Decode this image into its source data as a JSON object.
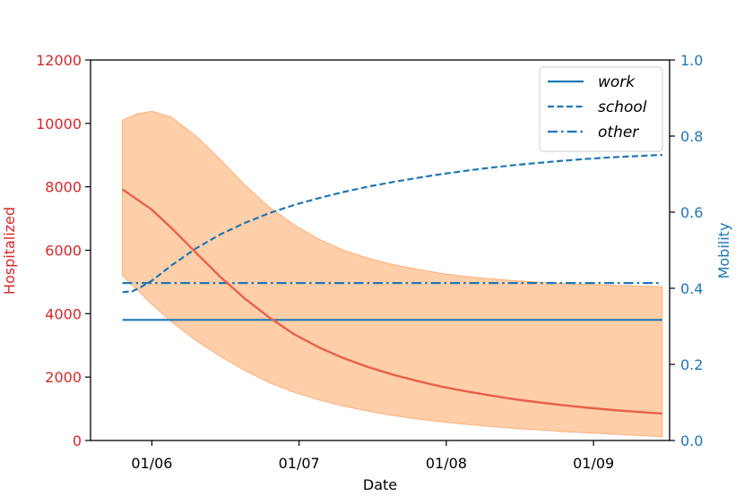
{
  "chart_data": {
    "type": "line",
    "xlabel": "Date",
    "ylabel_left": "Hospitalized",
    "ylabel_right": "Mobility",
    "x_ticks": [
      "01/06",
      "01/07",
      "01/08",
      "01/09"
    ],
    "x_tick_day": [
      6,
      36,
      66,
      96
    ],
    "x_range_days": [
      -6.5,
      111.5
    ],
    "y_left": {
      "min": 0,
      "max": 12000,
      "ticks": [
        0,
        2000,
        4000,
        6000,
        8000,
        10000,
        12000
      ]
    },
    "y_right": {
      "min": 0,
      "max": 1.0,
      "ticks": [
        "0.0",
        "0.2",
        "0.4",
        "0.6",
        "0.8",
        "1.0"
      ],
      "tick_values": [
        0,
        0.2,
        0.4,
        0.6,
        0.8,
        1.0
      ]
    },
    "hospitalized": {
      "name": "Hospitalized",
      "color": "#e8604c",
      "days": [
        0,
        3,
        6,
        10,
        15,
        20,
        25,
        30,
        35,
        40,
        45,
        50,
        55,
        60,
        65,
        70,
        75,
        80,
        85,
        90,
        95,
        100,
        105,
        110
      ],
      "values": [
        7920,
        7600,
        7280,
        6700,
        5920,
        5150,
        4470,
        3870,
        3350,
        2940,
        2600,
        2320,
        2080,
        1880,
        1700,
        1550,
        1420,
        1300,
        1200,
        1110,
        1030,
        960,
        900,
        850
      ]
    },
    "band": {
      "color": "#fdbf8c",
      "days": [
        0,
        3,
        6,
        10,
        15,
        20,
        25,
        30,
        35,
        40,
        45,
        50,
        55,
        60,
        65,
        70,
        75,
        80,
        85,
        90,
        95,
        100,
        105,
        110
      ],
      "upper": [
        10100,
        10300,
        10380,
        10200,
        9600,
        8850,
        8050,
        7350,
        6800,
        6350,
        6000,
        5750,
        5550,
        5400,
        5270,
        5170,
        5100,
        5040,
        4990,
        4950,
        4920,
        4890,
        4870,
        4850
      ],
      "lower": [
        5200,
        4750,
        4300,
        3750,
        3150,
        2650,
        2200,
        1820,
        1520,
        1280,
        1090,
        930,
        790,
        680,
        590,
        510,
        440,
        380,
        330,
        280,
        240,
        200,
        160,
        120
      ]
    },
    "mobility": [
      {
        "name": "work",
        "style": "solid",
        "color": "#1f77b4",
        "days": [
          0,
          110
        ],
        "values": [
          0.317,
          0.317
        ]
      },
      {
        "name": "school",
        "style": "dashed",
        "color": "#1f77b4",
        "days": [
          0,
          2,
          4,
          6,
          10,
          15,
          20,
          25,
          30,
          35,
          40,
          45,
          50,
          55,
          60,
          65,
          70,
          75,
          80,
          85,
          90,
          95,
          100,
          105,
          110
        ],
        "values": [
          0.39,
          0.392,
          0.405,
          0.42,
          0.46,
          0.505,
          0.542,
          0.572,
          0.598,
          0.619,
          0.637,
          0.653,
          0.667,
          0.679,
          0.69,
          0.7,
          0.709,
          0.717,
          0.724,
          0.73,
          0.7355,
          0.7405,
          0.7445,
          0.7475,
          0.7505
        ]
      },
      {
        "name": "other",
        "style": "dashdot",
        "color": "#1f77b4",
        "days": [
          0,
          110
        ],
        "values": [
          0.414,
          0.414
        ]
      }
    ],
    "legend": {
      "position": "top-right",
      "entries": [
        "work",
        "school",
        "other"
      ]
    }
  }
}
